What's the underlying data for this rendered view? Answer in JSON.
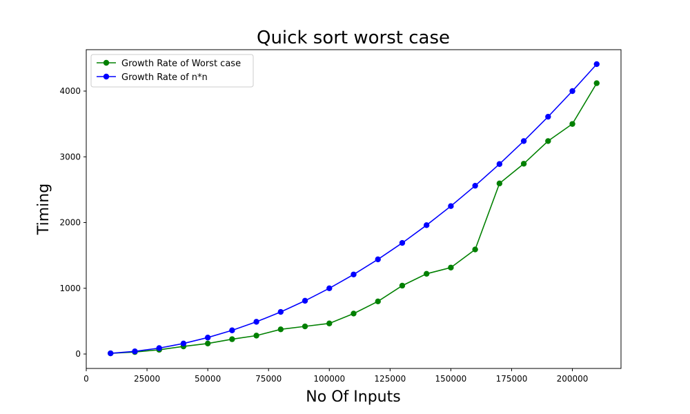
{
  "chart_data": {
    "type": "line",
    "title": "Quick sort worst case",
    "xlabel": "No Of Inputs",
    "ylabel": "Timing",
    "xlim": [
      0,
      220000
    ],
    "ylim": [
      -220,
      4630
    ],
    "xticks": [
      0,
      25000,
      50000,
      75000,
      100000,
      125000,
      150000,
      175000,
      200000
    ],
    "yticks": [
      0,
      1000,
      2000,
      3000,
      4000
    ],
    "grid": false,
    "legend_position": "top-left",
    "x": [
      10000,
      20000,
      30000,
      40000,
      50000,
      60000,
      70000,
      80000,
      90000,
      100000,
      110000,
      120000,
      130000,
      140000,
      150000,
      160000,
      170000,
      180000,
      190000,
      200000,
      210000
    ],
    "series": [
      {
        "name": "Growth Rate of Worst case",
        "color": "#008000",
        "values": [
          10,
          30,
          65,
          115,
          160,
          225,
          280,
          375,
          420,
          465,
          615,
          800,
          1040,
          1220,
          1315,
          1590,
          2595,
          2895,
          3240,
          3500,
          4120
        ]
      },
      {
        "name": "Growth Rate of n*n",
        "color": "#0000ff",
        "values": [
          10,
          40,
          90,
          160,
          250,
          360,
          490,
          640,
          810,
          1000,
          1210,
          1440,
          1690,
          1960,
          2250,
          2560,
          2890,
          3240,
          3610,
          4000,
          4410
        ]
      }
    ]
  }
}
